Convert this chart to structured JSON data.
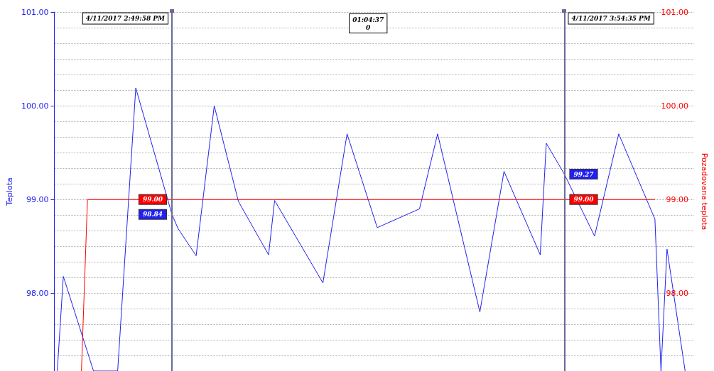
{
  "chart_data": {
    "type": "line",
    "ylabel": "Teplota",
    "y2label": "Pozadovana teplota",
    "categories": [
      null,
      null,
      null,
      null,
      null,
      null,
      null,
      null,
      null,
      null,
      null,
      null,
      null,
      null,
      null,
      null,
      null,
      null,
      null,
      null,
      null,
      null,
      null,
      null,
      null,
      null,
      null,
      null,
      null,
      null,
      null,
      null,
      null,
      null,
      null,
      null,
      null,
      null,
      null,
      null,
      null,
      null,
      null,
      null,
      null,
      null,
      null,
      null,
      null,
      null,
      null,
      null,
      null,
      null,
      null,
      null,
      null,
      null,
      null,
      null,
      null,
      null,
      null,
      null,
      null,
      null,
      null,
      null,
      null,
      null,
      null,
      null,
      null,
      null,
      null,
      null,
      null,
      null,
      null,
      null,
      null,
      null,
      null,
      null,
      null,
      null,
      null,
      null,
      null,
      null,
      null,
      null,
      null,
      null,
      null,
      null,
      null,
      null,
      null,
      null,
      null,
      null,
      null,
      null,
      null,
      null
    ],
    "ylim": [
      97.17,
      101.0
    ],
    "yticks": [
      {
        "value": 98,
        "label": "98.00"
      },
      {
        "value": 99,
        "label": "99.00"
      },
      {
        "value": 100,
        "label": "100.00"
      },
      {
        "value": 101,
        "label": "101.00"
      }
    ],
    "y2lim": [
      97.17,
      101.0
    ],
    "y2ticks": [
      {
        "value": 98,
        "label": "98.00"
      },
      {
        "value": 99,
        "label": "99.00"
      },
      {
        "value": 100,
        "label": "100.00"
      },
      {
        "value": 101,
        "label": "101.00"
      }
    ],
    "tick_labels": "y",
    "grid": "y",
    "marker": "none",
    "line_style": "solid",
    "series": [
      {
        "color": "#2020f0",
        "values": [
          97.17,
          98.18,
          null,
          null,
          null,
          null,
          97.17,
          null,
          null,
          null,
          97.17,
          null,
          null,
          100.19,
          null,
          null,
          null,
          null,
          null,
          98.84,
          98.69,
          null,
          null,
          98.4,
          null,
          null,
          100.0,
          null,
          null,
          null,
          98.98,
          null,
          null,
          null,
          null,
          98.41,
          98.99,
          null,
          null,
          null,
          null,
          null,
          null,
          null,
          98.11,
          null,
          null,
          null,
          99.7,
          null,
          null,
          null,
          null,
          98.7,
          null,
          null,
          null,
          null,
          null,
          null,
          98.9,
          null,
          null,
          99.7,
          null,
          null,
          null,
          null,
          null,
          null,
          97.8,
          null,
          null,
          null,
          99.3,
          null,
          null,
          null,
          null,
          null,
          98.41,
          99.6,
          null,
          null,
          99.27,
          null,
          null,
          null,
          null,
          98.61,
          null,
          null,
          null,
          99.7,
          null,
          null,
          null,
          null,
          null,
          98.79,
          97.17,
          98.47,
          null,
          null,
          97.17,
          null
        ],
        "value_labels": [
          null,
          null,
          null,
          null,
          null,
          null,
          null,
          null,
          null,
          null,
          null,
          null,
          null,
          null,
          null,
          null,
          null,
          null,
          null,
          "98.84",
          null,
          null,
          null,
          null,
          null,
          null,
          null,
          null,
          null,
          null,
          null,
          null,
          null,
          null,
          null,
          null,
          null,
          null,
          null,
          null,
          null,
          null,
          null,
          null,
          null,
          null,
          null,
          null,
          null,
          null,
          null,
          null,
          null,
          null,
          null,
          null,
          null,
          null,
          null,
          null,
          null,
          null,
          null,
          null,
          null,
          null,
          null,
          null,
          null,
          null,
          null,
          null,
          null,
          null,
          null,
          null,
          null,
          null,
          null,
          null,
          null,
          null,
          null,
          null,
          "99.27",
          null,
          null,
          null,
          null,
          null,
          null,
          null,
          null,
          null,
          null,
          null,
          null,
          null,
          null,
          null,
          null,
          null,
          null,
          null,
          null,
          null
        ]
      },
      {
        "color": "#ff0000",
        "axis": "y2",
        "values": [
          null,
          null,
          null,
          null,
          97.17,
          99.0,
          null,
          null,
          null,
          null,
          null,
          null,
          null,
          null,
          null,
          null,
          null,
          null,
          null,
          99.0,
          null,
          null,
          null,
          null,
          null,
          null,
          null,
          null,
          null,
          null,
          null,
          null,
          null,
          null,
          null,
          null,
          null,
          null,
          null,
          null,
          null,
          null,
          null,
          null,
          null,
          null,
          null,
          null,
          null,
          null,
          null,
          null,
          null,
          null,
          null,
          null,
          null,
          null,
          null,
          null,
          null,
          null,
          null,
          null,
          null,
          null,
          null,
          null,
          null,
          null,
          null,
          null,
          null,
          null,
          null,
          null,
          null,
          null,
          null,
          null,
          null,
          null,
          null,
          null,
          99.0,
          null,
          null,
          null,
          null,
          null,
          null,
          null,
          null,
          null,
          null,
          null,
          null,
          null,
          null,
          99.0,
          null,
          null,
          null,
          null,
          null,
          null
        ],
        "value_labels": [
          null,
          null,
          null,
          null,
          null,
          null,
          null,
          null,
          null,
          null,
          null,
          null,
          null,
          null,
          null,
          null,
          null,
          null,
          null,
          "99.00",
          null,
          null,
          null,
          null,
          null,
          null,
          null,
          null,
          null,
          null,
          null,
          null,
          null,
          null,
          null,
          null,
          null,
          null,
          null,
          null,
          null,
          null,
          null,
          null,
          null,
          null,
          null,
          null,
          null,
          null,
          null,
          null,
          null,
          null,
          null,
          null,
          null,
          null,
          null,
          null,
          null,
          null,
          null,
          null,
          null,
          null,
          null,
          null,
          null,
          null,
          null,
          null,
          null,
          null,
          null,
          null,
          null,
          null,
          null,
          null,
          null,
          null,
          null,
          null,
          "99.00",
          null,
          null,
          null,
          null,
          null,
          null,
          null,
          null,
          null,
          null,
          null,
          null,
          null,
          null,
          null,
          null,
          null,
          null,
          null,
          null,
          null
        ]
      }
    ],
    "annotations": [
      "4/11/2017 2:49:58 PM",
      "01:04:37\n0",
      "4/11/2017 3:54:35 PM"
    ]
  }
}
